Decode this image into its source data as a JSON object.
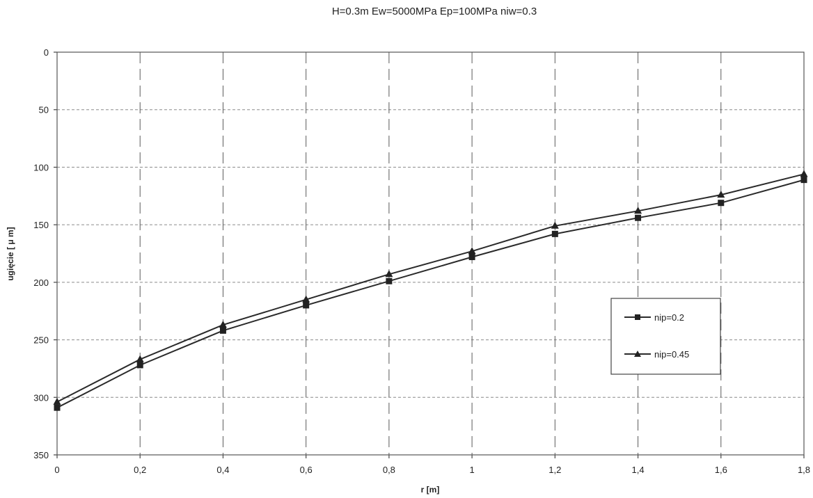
{
  "chart_data": {
    "type": "line",
    "title": "H=0.3m Ew=5000MPa Ep=100MPa niw=0.3",
    "xlabel": "r [m]",
    "ylabel": "ugięcie [ μ m]",
    "x": [
      0,
      0.2,
      0.4,
      0.6,
      0.8,
      1,
      1.2,
      1.4,
      1.6,
      1.8
    ],
    "x_tick_labels": [
      "0",
      "0,2",
      "0,4",
      "0,6",
      "0,8",
      "1",
      "1,2",
      "1,4",
      "1,6",
      "1,8"
    ],
    "y_ticks": [
      0,
      50,
      100,
      150,
      200,
      250,
      300,
      350
    ],
    "ylim": [
      0,
      350
    ],
    "y_inverted": true,
    "xlim": [
      0,
      1.8
    ],
    "grid": true,
    "legend_position": "right",
    "series": [
      {
        "name": "nip=0.2",
        "marker": "square",
        "values": [
          309,
          272,
          242,
          220,
          199,
          178,
          158,
          144,
          131,
          111
        ]
      },
      {
        "name": "nip=0.45",
        "marker": "triangle",
        "values": [
          304,
          267,
          237,
          215,
          193,
          173,
          151,
          138,
          124,
          106
        ]
      }
    ]
  }
}
